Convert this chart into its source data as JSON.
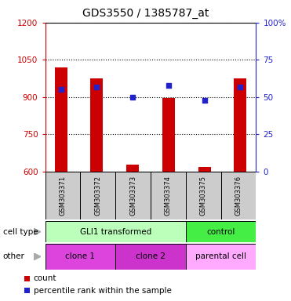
{
  "title": "GDS3550 / 1385787_at",
  "samples": [
    "GSM303371",
    "GSM303372",
    "GSM303373",
    "GSM303374",
    "GSM303375",
    "GSM303376"
  ],
  "counts": [
    1020,
    975,
    628,
    897,
    618,
    975
  ],
  "percentile_ranks": [
    55,
    57,
    50,
    58,
    48,
    57
  ],
  "ylim_left": [
    600,
    1200
  ],
  "ylim_right": [
    0,
    100
  ],
  "yticks_left": [
    600,
    750,
    900,
    1050,
    1200
  ],
  "yticks_right": [
    0,
    25,
    50,
    75,
    100
  ],
  "bar_color": "#cc0000",
  "dot_color": "#2222cc",
  "bar_width": 0.35,
  "cell_type_groups": [
    {
      "label": "GLI1 transformed",
      "cols": [
        0,
        1,
        2,
        3
      ],
      "color": "#bbffbb"
    },
    {
      "label": "control",
      "cols": [
        4,
        5
      ],
      "color": "#44ee44"
    }
  ],
  "other_groups": [
    {
      "label": "clone 1",
      "cols": [
        0,
        1
      ],
      "color": "#dd44dd"
    },
    {
      "label": "clone 2",
      "cols": [
        2,
        3
      ],
      "color": "#cc33cc"
    },
    {
      "label": "parental cell",
      "cols": [
        4,
        5
      ],
      "color": "#ffaaff"
    }
  ],
  "legend_count_color": "#cc0000",
  "legend_dot_color": "#2222cc",
  "tick_color_left": "#cc0000",
  "tick_color_right": "#2222cc",
  "sample_area_color": "#cccccc",
  "row_label_cell_type": "cell type",
  "row_label_other": "other"
}
